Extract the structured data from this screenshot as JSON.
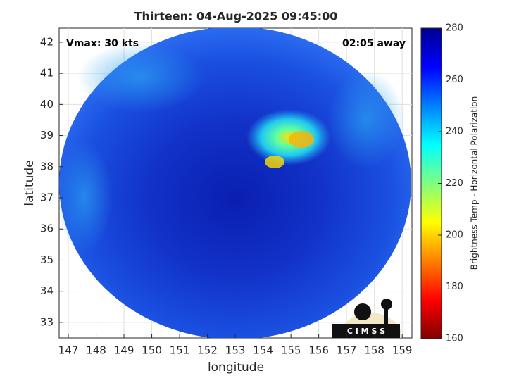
{
  "chart_data": {
    "type": "image",
    "title": "Thirteen: 04-Aug-2025 09:45:00",
    "annotations": [
      "Vmax: 30 kts",
      "02:05 away"
    ],
    "xlabel": "longitude",
    "ylabel": "latitude",
    "xlim": [
      146.67,
      159.35
    ],
    "ylim": [
      32.5,
      42.45
    ],
    "xticks": [
      147,
      148,
      149,
      150,
      151,
      152,
      153,
      154,
      155,
      156,
      157,
      158,
      159
    ],
    "yticks": [
      33,
      34,
      35,
      36,
      37,
      38,
      39,
      40,
      41,
      42
    ],
    "grid": true,
    "colorbar": {
      "label": "Brightness Temp - Horizontal Polarization",
      "lim": [
        160,
        280
      ],
      "ticks": [
        160,
        180,
        200,
        220,
        240,
        260,
        280
      ]
    },
    "logo": "C I M S S"
  }
}
